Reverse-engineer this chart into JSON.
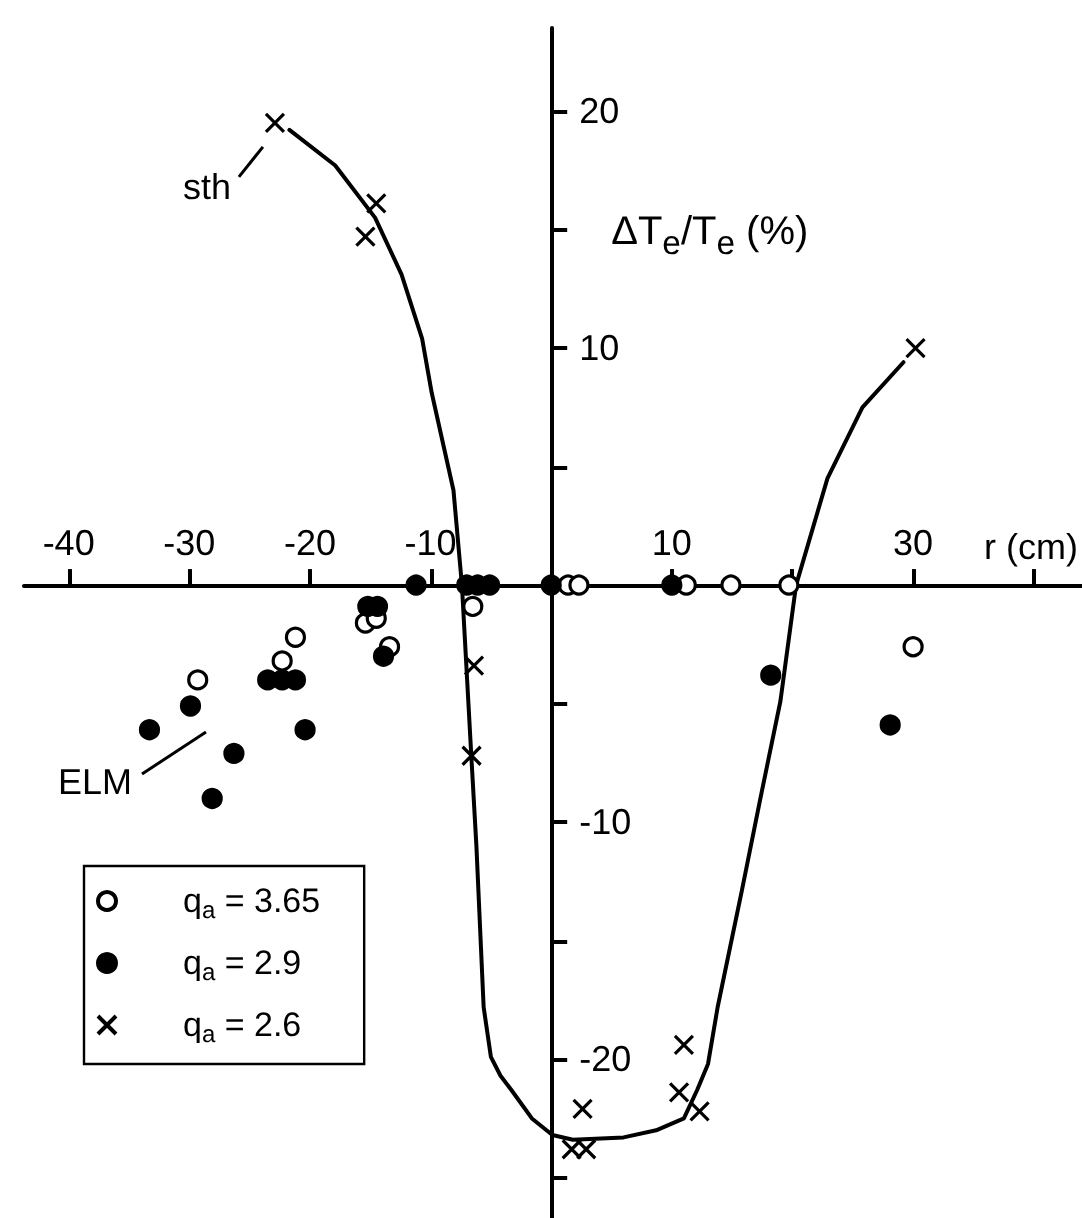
{
  "chart_data": {
    "type": "scatter",
    "xlabel": "r (cm)",
    "ylabel": "ΔT$_{e}$/T$_{e}$ (%)",
    "xlim": [
      -43.7,
      44.0
    ],
    "ylim": [
      -26.7,
      23.5
    ],
    "xticks": [
      -40,
      -30,
      -20,
      -10,
      10,
      {
        "value": 20,
        "label": null
      },
      30,
      {
        "value": 40,
        "label": null
      }
    ],
    "yticks": [
      20,
      {
        "value": 15,
        "label": null
      },
      10,
      {
        "value": 5,
        "label": null
      },
      {
        "value": -5,
        "label": null
      },
      -10,
      {
        "value": -15,
        "label": null
      },
      -20,
      {
        "value": -25,
        "label": null
      }
    ],
    "grid": false,
    "legend": "bottom left",
    "annotations": [
      {
        "text": "sth",
        "x": -22.9,
        "y": 19.5
      },
      "ELM"
    ],
    "series": [
      {
        "name": "q$_{a}$ = 3.65",
        "marker": "circle",
        "color": "#ffffff",
        "x": [
          1.4,
          2.3,
          11.2,
          14.9,
          19.7,
          30.0,
          -6.5,
          -15.4,
          -14.5,
          -13.4,
          -21.2,
          -22.3,
          -29.3
        ],
        "values": [
          0,
          0,
          0,
          0,
          0,
          -2.6,
          -0.9,
          -1.6,
          -1.4,
          -2.6,
          -2.2,
          -3.2,
          -4.0
        ]
      },
      {
        "name": "q$_{a}$ = 2.9",
        "marker": "circle",
        "color": "#000000",
        "x": [
          -11.2,
          -7.0,
          -6.1,
          -5.1,
          0,
          10.0,
          -15.2,
          -14.4,
          -13.9,
          -23.5,
          -22.3,
          -21.2,
          -29.9,
          -33.3,
          -20.4,
          -26.3,
          -28.1,
          18.2,
          28.1
        ],
        "values": [
          0,
          0,
          0,
          0,
          0,
          0,
          -0.9,
          -0.9,
          -3.0,
          -4.0,
          -4.0,
          -4.0,
          -5.1,
          -6.1,
          -6.1,
          -7.1,
          -9.0,
          -3.8,
          -5.9
        ]
      },
      {
        "name": "q$_{a}$ = 2.6",
        "marker": "cross",
        "color": "#000000",
        "x": [
          -22.9,
          -14.5,
          -15.4,
          -6.4,
          -6.6,
          2.6,
          1.7,
          2.9,
          11.0,
          10.6,
          12.3,
          30.2
        ],
        "values": [
          19.5,
          16.1,
          14.7,
          -3.4,
          -7.2,
          -22.1,
          -23.8,
          -23.8,
          -19.4,
          -21.4,
          -22.2,
          10.0
        ]
      },
      {
        "type": "line",
        "marker": "none",
        "line_style": "solid",
        "color": "#000000",
        "x": [
          -21.7,
          -17.9,
          -14.6,
          -12.4,
          -10.7,
          -9.9,
          -8.1,
          -7.4,
          -6.6,
          -6.2,
          -5.6,
          -5.0,
          -4.2,
          -3.3,
          -1.6,
          0.1,
          1.8,
          6.0,
          8.7,
          11.0,
          12.1,
          13.0,
          13.8,
          15.8,
          17.3,
          19.0,
          20.3,
          22.9,
          25.8,
          29.2
        ],
        "values": [
          19.2,
          17.7,
          15.5,
          13.1,
          10.4,
          8.1,
          4.0,
          0,
          -7.4,
          -11.0,
          -17.8,
          -19.9,
          -20.7,
          -21.3,
          -22.5,
          -23.2,
          -23.4,
          -23.3,
          -23.0,
          -22.5,
          -21.3,
          -20.2,
          -17.8,
          -12.9,
          -9.1,
          -4.9,
          0,
          4.5,
          7.5,
          9.4
        ]
      }
    ]
  }
}
